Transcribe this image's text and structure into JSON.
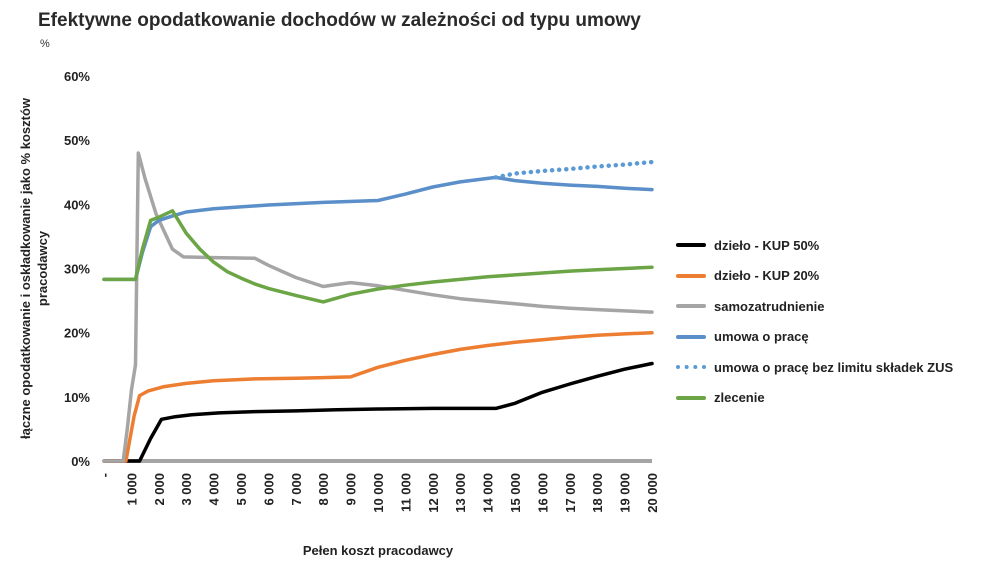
{
  "chart_data": {
    "type": "line",
    "title": "Efektywne opodatkowanie dochodów w zależności od typu umowy",
    "unit_label": "%",
    "xlabel": "Pełen koszt pracodawcy",
    "ylabel_lines": [
      "łączne opodatkowanie i oskładkowanie jako % kosztów",
      "pracodawcy"
    ],
    "xlim": [
      0,
      20000
    ],
    "ylim": [
      0,
      60
    ],
    "x_ticks": [
      0,
      1000,
      2000,
      3000,
      4000,
      5000,
      6000,
      7000,
      8000,
      9000,
      10000,
      11000,
      12000,
      13000,
      14000,
      15000,
      16000,
      17000,
      18000,
      19000,
      20000
    ],
    "x_tick_labels": [
      "-",
      "1 000",
      "2 000",
      "3 000",
      "4 000",
      "5 000",
      "6 000",
      "7 000",
      "8 000",
      "9 000",
      "10 000",
      "11 000",
      "12 000",
      "13 000",
      "14 000",
      "15 000",
      "16 000",
      "17 000",
      "18 000",
      "19 000",
      "20 000"
    ],
    "y_ticks": [
      0,
      10,
      20,
      30,
      40,
      50,
      60
    ],
    "y_tick_labels": [
      "0%",
      "10%",
      "20%",
      "30%",
      "40%",
      "50%",
      "60%"
    ],
    "grid": false,
    "legend_position": "right",
    "series": [
      {
        "name": "dzieło - KUP 50%",
        "color": "#000000",
        "style": "solid",
        "points": [
          [
            0,
            0
          ],
          [
            1300,
            0
          ],
          [
            1700,
            3.5
          ],
          [
            2100,
            6.5
          ],
          [
            2600,
            6.9
          ],
          [
            3200,
            7.2
          ],
          [
            4200,
            7.5
          ],
          [
            5500,
            7.7
          ],
          [
            7000,
            7.8
          ],
          [
            8500,
            8.0
          ],
          [
            10000,
            8.1
          ],
          [
            12000,
            8.2
          ],
          [
            14300,
            8.2
          ],
          [
            15000,
            9.0
          ],
          [
            16000,
            10.7
          ],
          [
            17000,
            12.0
          ],
          [
            18000,
            13.2
          ],
          [
            19000,
            14.3
          ],
          [
            20000,
            15.2
          ]
        ]
      },
      {
        "name": "dzieło - KUP 20%",
        "color": "#ed7d31",
        "style": "solid",
        "points": [
          [
            0,
            0
          ],
          [
            800,
            0
          ],
          [
            1100,
            7.0
          ],
          [
            1300,
            10.2
          ],
          [
            1600,
            10.9
          ],
          [
            2200,
            11.6
          ],
          [
            3000,
            12.1
          ],
          [
            4000,
            12.5
          ],
          [
            5500,
            12.8
          ],
          [
            7000,
            12.9
          ],
          [
            8000,
            13.0
          ],
          [
            9000,
            13.1
          ],
          [
            10000,
            14.6
          ],
          [
            11000,
            15.7
          ],
          [
            12000,
            16.6
          ],
          [
            13000,
            17.4
          ],
          [
            14000,
            18.0
          ],
          [
            15000,
            18.5
          ],
          [
            16000,
            18.9
          ],
          [
            17000,
            19.3
          ],
          [
            18000,
            19.6
          ],
          [
            19000,
            19.8
          ],
          [
            20000,
            20.0
          ]
        ]
      },
      {
        "name": "samozatrudnienie",
        "color": "#a5a5a5",
        "style": "solid",
        "points": [
          [
            0,
            0
          ],
          [
            700,
            0
          ],
          [
            850,
            5.0
          ],
          [
            1000,
            11.0
          ],
          [
            1150,
            15.0
          ],
          [
            1250,
            48.0
          ],
          [
            1500,
            44.0
          ],
          [
            1900,
            38.5
          ],
          [
            2500,
            33.0
          ],
          [
            2900,
            31.8
          ],
          [
            4000,
            31.7
          ],
          [
            5500,
            31.6
          ],
          [
            6000,
            30.5
          ],
          [
            7000,
            28.6
          ],
          [
            8000,
            27.2
          ],
          [
            8500,
            27.5
          ],
          [
            9000,
            27.8
          ],
          [
            10000,
            27.3
          ],
          [
            11000,
            26.6
          ],
          [
            12000,
            25.9
          ],
          [
            13000,
            25.3
          ],
          [
            14000,
            24.9
          ],
          [
            15000,
            24.5
          ],
          [
            16000,
            24.1
          ],
          [
            17000,
            23.8
          ],
          [
            18000,
            23.6
          ],
          [
            19000,
            23.4
          ],
          [
            20000,
            23.2
          ]
        ]
      },
      {
        "name": "umowa o pracę",
        "color": "#5b8fc9",
        "style": "solid",
        "points": [
          [
            0,
            28.3
          ],
          [
            1150,
            28.3
          ],
          [
            1400,
            32.5
          ],
          [
            1700,
            36.5
          ],
          [
            2000,
            37.5
          ],
          [
            2500,
            38.2
          ],
          [
            3000,
            38.8
          ],
          [
            4000,
            39.3
          ],
          [
            6000,
            39.9
          ],
          [
            8000,
            40.3
          ],
          [
            10000,
            40.6
          ],
          [
            11000,
            41.6
          ],
          [
            12000,
            42.7
          ],
          [
            13000,
            43.5
          ],
          [
            14300,
            44.2
          ],
          [
            15000,
            43.7
          ],
          [
            16000,
            43.3
          ],
          [
            17000,
            43.0
          ],
          [
            18000,
            42.8
          ],
          [
            19000,
            42.5
          ],
          [
            20000,
            42.3
          ]
        ]
      },
      {
        "name": "umowa o pracę bez limitu składek ZUS",
        "color": "#5b9bd5",
        "style": "dotted",
        "points": [
          [
            14300,
            44.2
          ],
          [
            15000,
            44.8
          ],
          [
            16000,
            45.2
          ],
          [
            17000,
            45.5
          ],
          [
            18000,
            45.9
          ],
          [
            19000,
            46.2
          ],
          [
            20000,
            46.6
          ]
        ]
      },
      {
        "name": "zlecenie",
        "color": "#6ca545",
        "style": "solid",
        "points": [
          [
            0,
            28.3
          ],
          [
            1150,
            28.3
          ],
          [
            1400,
            33.0
          ],
          [
            1700,
            37.5
          ],
          [
            2000,
            38.0
          ],
          [
            2500,
            39.0
          ],
          [
            3000,
            35.5
          ],
          [
            3500,
            33.0
          ],
          [
            4000,
            31.0
          ],
          [
            4500,
            29.5
          ],
          [
            5000,
            28.5
          ],
          [
            5500,
            27.6
          ],
          [
            6000,
            26.9
          ],
          [
            7000,
            25.8
          ],
          [
            8000,
            24.8
          ],
          [
            9000,
            26.0
          ],
          [
            10000,
            26.8
          ],
          [
            11000,
            27.4
          ],
          [
            12000,
            27.9
          ],
          [
            13000,
            28.3
          ],
          [
            14000,
            28.7
          ],
          [
            15000,
            29.0
          ],
          [
            16000,
            29.3
          ],
          [
            17000,
            29.6
          ],
          [
            18000,
            29.8
          ],
          [
            19000,
            30.0
          ],
          [
            20000,
            30.2
          ]
        ]
      }
    ]
  }
}
